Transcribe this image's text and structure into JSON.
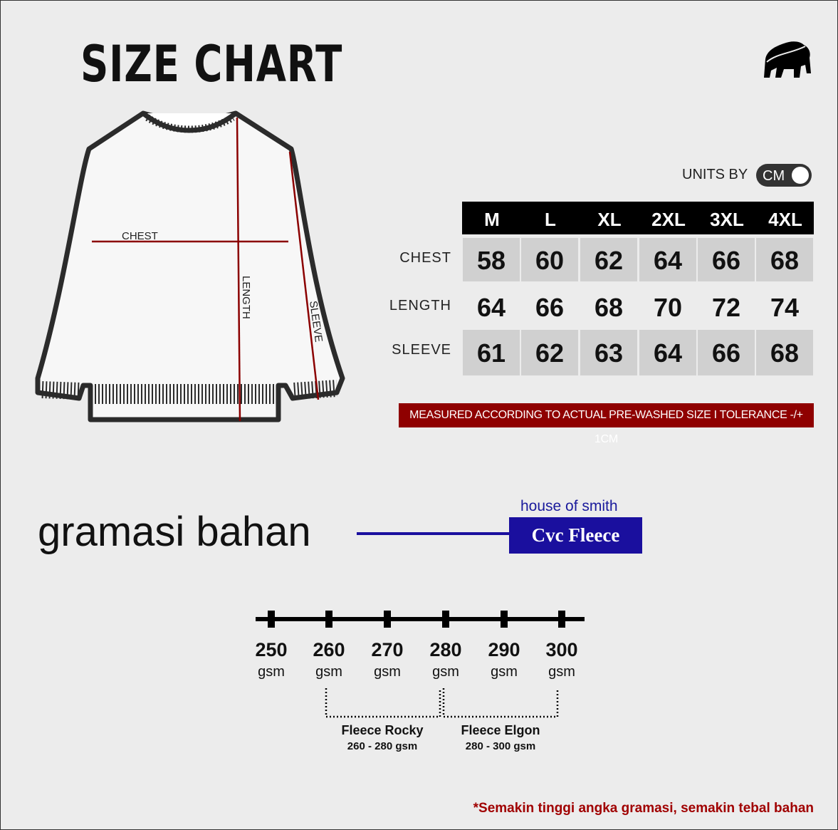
{
  "title": "SIZE CHART",
  "logo": {
    "icon": "gorilla-icon"
  },
  "units": {
    "label": "UNITS BY",
    "value": "CM"
  },
  "diagram": {
    "labels": {
      "chest": "CHEST",
      "length": "LENGTH",
      "sleeve": "SLEEVE"
    }
  },
  "table": {
    "sizes": [
      "M",
      "L",
      "XL",
      "2XL",
      "3XL",
      "4XL"
    ],
    "rows": [
      {
        "label": "CHEST",
        "values": [
          "58",
          "60",
          "62",
          "64",
          "66",
          "68"
        ]
      },
      {
        "label": "LENGTH",
        "values": [
          "64",
          "66",
          "68",
          "70",
          "72",
          "74"
        ]
      },
      {
        "label": "SLEEVE",
        "values": [
          "61",
          "62",
          "63",
          "64",
          "66",
          "68"
        ]
      }
    ]
  },
  "note": "MEASURED ACCORDING TO ACTUAL PRE-WASHED SIZE  I  TOLERANCE -/+ 1CM",
  "gramasi": {
    "label": "gramasi bahan",
    "brand": "house of smith",
    "fabric": "Cvc Fleece"
  },
  "scale": {
    "values": [
      "250",
      "260",
      "270",
      "280",
      "290",
      "300"
    ],
    "unit": "gsm",
    "ranges": [
      {
        "name": "Fleece Rocky",
        "range": "260 - 280 gsm"
      },
      {
        "name": "Fleece Elgon",
        "range": "280 - 300 gsm"
      }
    ]
  },
  "footnote": "*Semakin tinggi angka gramasi, semakin tebal bahan",
  "colors": {
    "accent_red": "#8f0000",
    "brand_blue": "#1a0f9e",
    "measure_line": "#8b0000"
  }
}
